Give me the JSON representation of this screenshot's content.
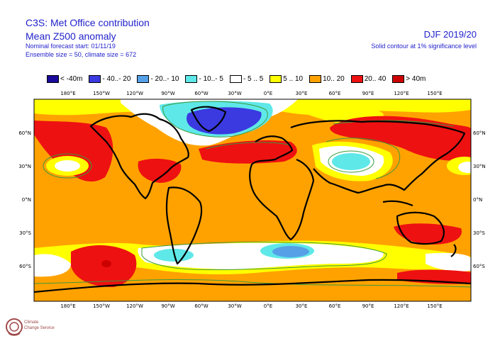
{
  "header": {
    "title": "C3S: Met Office contribution",
    "subtitle": "Mean Z500 anomaly",
    "forecast_start": "Nominal forecast start: 01/11/19",
    "ensemble": "Ensemble size = 50, climate size = 672",
    "season": "DJF 2019/20",
    "significance_note": "Solid contour at 1% significance level"
  },
  "legend": [
    {
      "label": "< -40m",
      "color": "#1a0a9a"
    },
    {
      "label": "- 40..- 20",
      "color": "#3a3ae0"
    },
    {
      "label": "- 20..- 10",
      "color": "#56a0e8"
    },
    {
      "label": "- 10..- 5",
      "color": "#5fe8e8"
    },
    {
      "label": "- 5 .. 5",
      "color": "#ffffff"
    },
    {
      "label": "5 .. 10",
      "color": "#ffff00"
    },
    {
      "label": "10.. 20",
      "color": "#ffa200"
    },
    {
      "label": "20.. 40",
      "color": "#ee1111"
    },
    {
      "label": "> 40m",
      "color": "#cc0000"
    }
  ],
  "lon_ticks": [
    "180°E",
    "150°W",
    "120°W",
    "90°W",
    "60°W",
    "30°W",
    "0°E",
    "30°E",
    "60°E",
    "90°E",
    "120°E",
    "150°E"
  ],
  "lat_ticks": [
    "60°N",
    "30°N",
    "0°N",
    "30°S",
    "60°S"
  ],
  "logo": {
    "line1": "Climate",
    "line2": "Change Service"
  }
}
